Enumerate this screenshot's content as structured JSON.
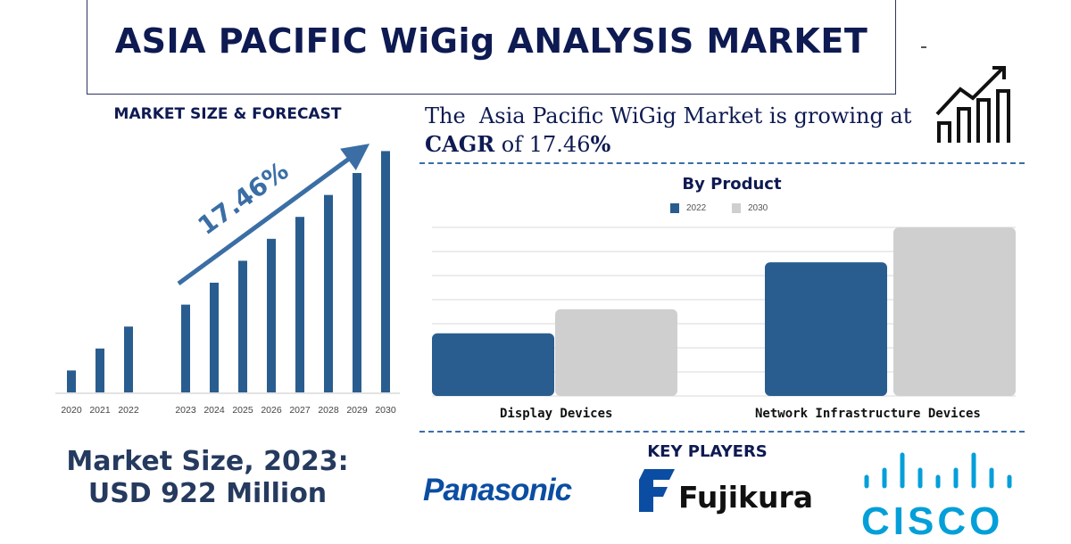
{
  "header": {
    "title": "ASIA PACIFIC WiGig ANALYSIS MARKET"
  },
  "forecast": {
    "heading": "MARKET SIZE & FORECAST",
    "cagr_label": "17.46%",
    "market_size_line1": "Market Size, 2023:",
    "market_size_line2": "USD 922 Million"
  },
  "summary": {
    "line1": "The  Asia Pacific WiGig Market is growing at",
    "cagr_word": "CAGR",
    "of": " of 17.46",
    "percent": "%"
  },
  "key_players": {
    "heading": "KEY PLAYERS",
    "logos": [
      "Panasonic",
      "Fujikura",
      "CISCO"
    ]
  },
  "colors": {
    "navy": "#0e1a52",
    "bar_blue": "#2a5d8f",
    "grey": "#cfcfcf",
    "arrow": "#3a6ea5",
    "cisco": "#049fd9",
    "panasonic": "#0b4da2"
  },
  "chart_data": [
    {
      "type": "bar",
      "title": "",
      "categories": [
        "2020",
        "2021",
        "2022",
        "2023",
        "2024",
        "2025",
        "2026",
        "2027",
        "2028",
        "2029",
        "2030"
      ],
      "values": [
        1,
        2,
        3,
        4,
        5,
        6,
        7,
        8,
        9,
        10,
        11
      ],
      "annotation": "17.46%",
      "grid": false
    },
    {
      "type": "bar",
      "title": "By Product",
      "categories": [
        "Display Devices",
        "Network Infrastructure Devices"
      ],
      "series": [
        {
          "name": "2022",
          "values": [
            2.6,
            5.55
          ]
        },
        {
          "name": "2030",
          "values": [
            3.6,
            7
          ]
        }
      ],
      "legend": "top",
      "grid": true,
      "ylim": [
        0,
        7
      ]
    }
  ]
}
